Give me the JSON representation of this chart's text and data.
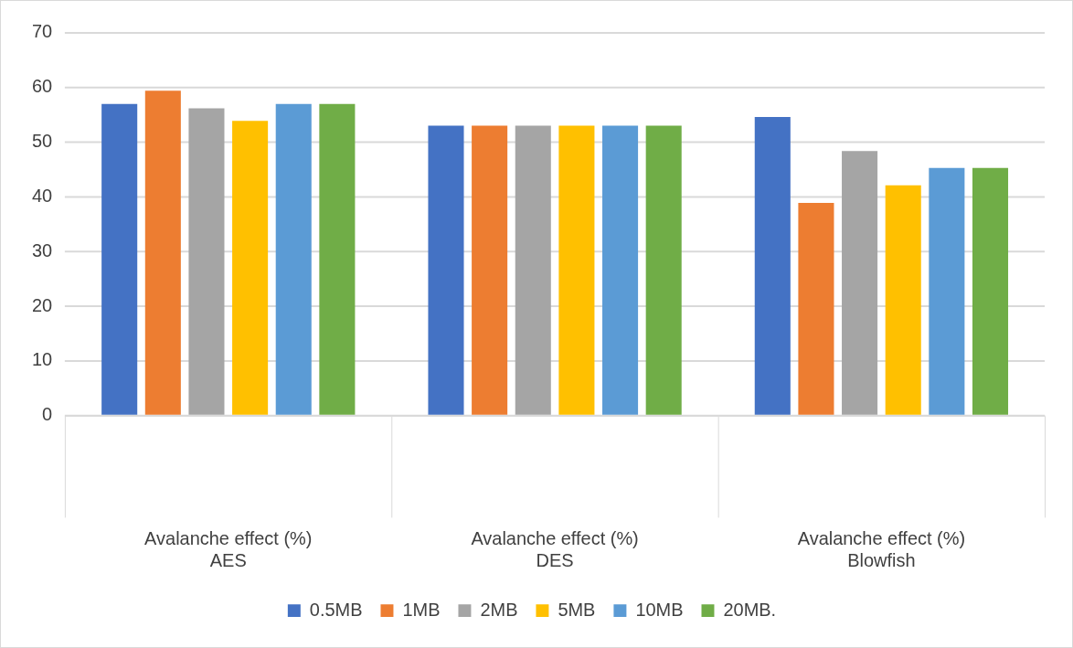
{
  "chart_data": {
    "type": "bar",
    "categories": [
      "Avalanche effect (%)\nAES",
      "Avalanche effect (%)\nDES",
      "Avalanche effect (%)\nBlowfish"
    ],
    "series": [
      {
        "name": "0.5MB",
        "color": "#4472c4",
        "values": [
          57.0,
          53.0,
          54.6
        ]
      },
      {
        "name": "1MB",
        "color": "#ed7d31",
        "values": [
          59.4,
          53.0,
          38.9
        ]
      },
      {
        "name": "2MB",
        "color": "#a5a5a5",
        "values": [
          56.2,
          53.0,
          48.4
        ]
      },
      {
        "name": "5MB",
        "color": "#ffc000",
        "values": [
          53.9,
          53.0,
          42.1
        ]
      },
      {
        "name": "10MB",
        "color": "#5b9bd5",
        "values": [
          57.0,
          53.0,
          45.3
        ]
      },
      {
        "name": "20MB.",
        "color": "#70ad47",
        "values": [
          57.0,
          53.0,
          45.3
        ]
      }
    ],
    "ylim": [
      0,
      70
    ],
    "yticks": [
      0,
      10,
      20,
      30,
      40,
      50,
      60,
      70
    ],
    "grid": "y",
    "legend": "bottom"
  }
}
